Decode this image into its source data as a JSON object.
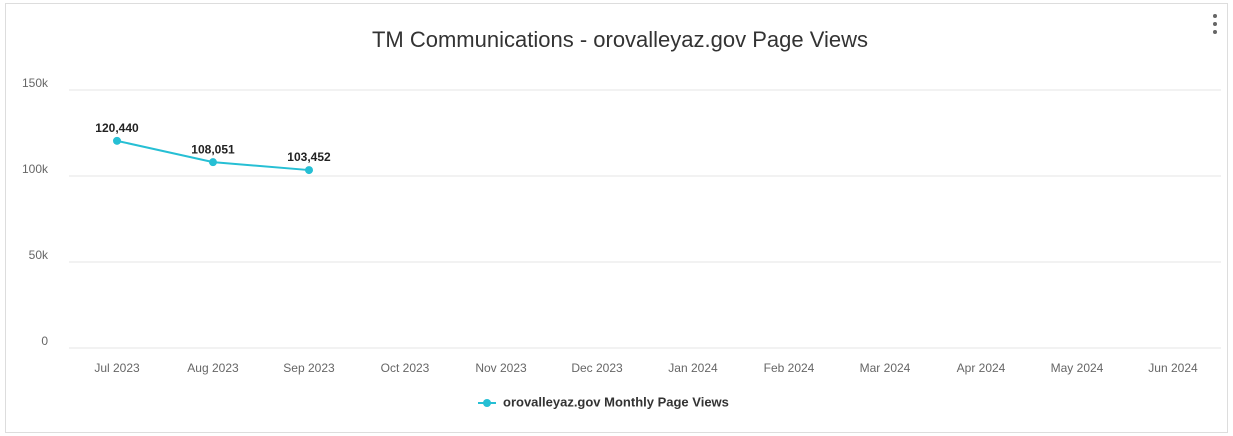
{
  "chart_data": {
    "type": "line",
    "title": "TM Communications - orovalleyaz.gov Page Views",
    "categories": [
      "Jul 2023",
      "Aug 2023",
      "Sep 2023",
      "Oct 2023",
      "Nov 2023",
      "Dec 2023",
      "Jan 2024",
      "Feb 2024",
      "Mar 2024",
      "Apr 2024",
      "May 2024",
      "Jun 2024"
    ],
    "series": [
      {
        "name": "orovalleyaz.gov Monthly Page Views",
        "color": "#26bfd4",
        "values": [
          120440,
          108051,
          103452,
          null,
          null,
          null,
          null,
          null,
          null,
          null,
          null,
          null
        ],
        "value_labels": [
          "120,440",
          "108,051",
          "103,452",
          null,
          null,
          null,
          null,
          null,
          null,
          null,
          null,
          null
        ]
      }
    ],
    "ylim": [
      0,
      150000
    ],
    "yticks": [
      0,
      {
        "value": 50000,
        "label": "50k"
      },
      {
        "value": 100000,
        "label": "100k"
      },
      {
        "value": 150000,
        "label": "150k"
      }
    ],
    "grid": true,
    "legend": "bottom"
  }
}
